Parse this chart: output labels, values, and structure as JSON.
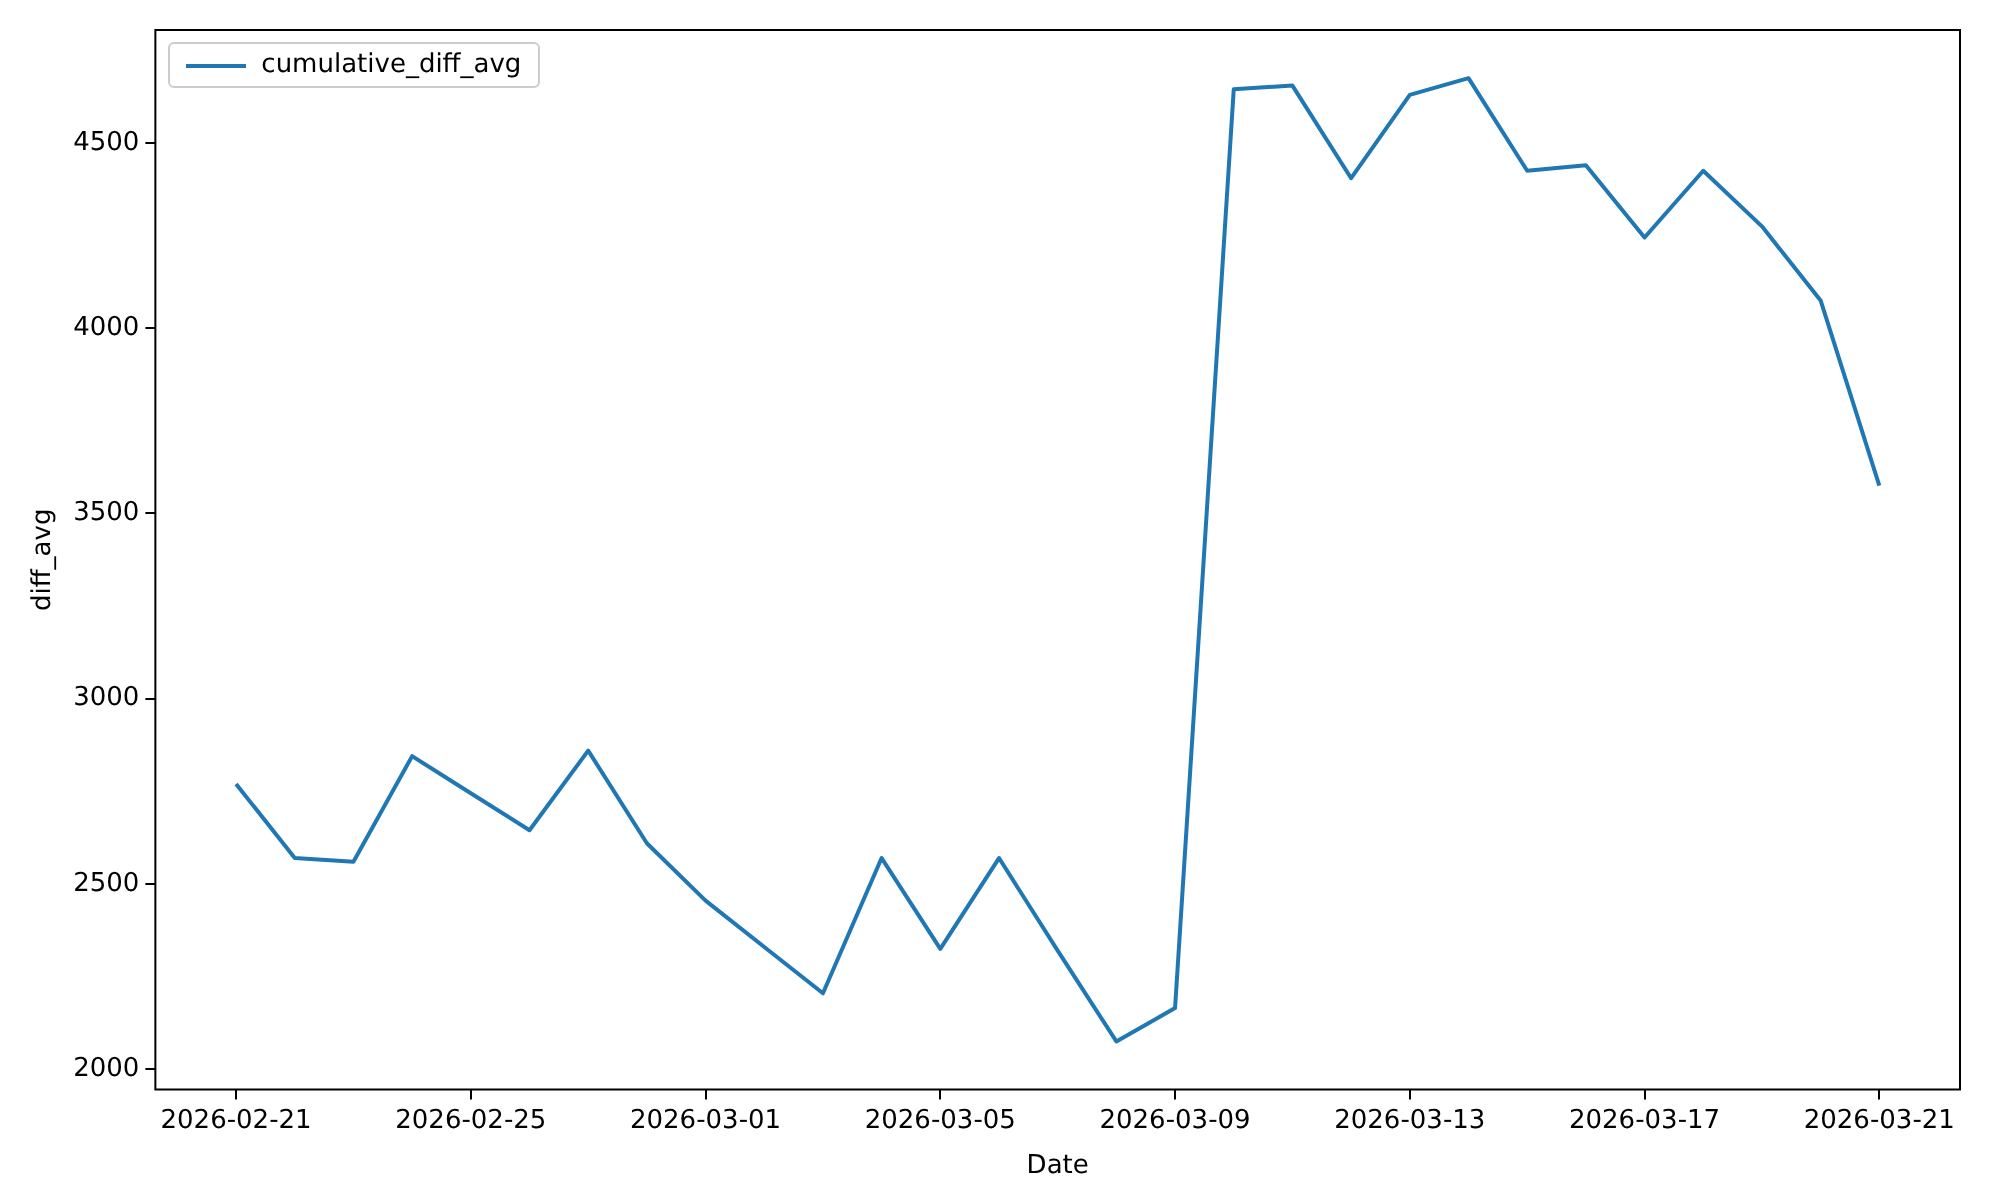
{
  "chart_data": {
    "type": "line",
    "xlabel": "Date",
    "ylabel": "diff_avg",
    "x": [
      "2026-02-21",
      "2026-02-22",
      "2026-02-23",
      "2026-02-24",
      "2026-02-25",
      "2026-02-26",
      "2026-02-27",
      "2026-02-28",
      "2026-03-01",
      "2026-03-02",
      "2026-03-03",
      "2026-03-04",
      "2026-03-05",
      "2026-03-06",
      "2026-03-07",
      "2026-03-08",
      "2026-03-09",
      "2026-03-10",
      "2026-03-11",
      "2026-03-12",
      "2026-03-13",
      "2026-03-14",
      "2026-03-15",
      "2026-03-16",
      "2026-03-17",
      "2026-03-18",
      "2026-03-19",
      "2026-03-20",
      "2026-03-21"
    ],
    "series": [
      {
        "name": "cumulative_diff_avg",
        "color": "#1f77b4",
        "values": [
          2770,
          2570,
          2560,
          2845,
          2745,
          2645,
          2860,
          2610,
          2455,
          2330,
          2205,
          2570,
          2325,
          2570,
          2320,
          2075,
          2165,
          4645,
          4655,
          4405,
          4630,
          4675,
          4425,
          4440,
          4245,
          4425,
          4275,
          4075,
          3575
        ]
      }
    ],
    "xlim": [
      "2026-02-19T15:00",
      "2026-03-22T09:00"
    ],
    "xticks": [
      "2026-02-21",
      "2026-02-25",
      "2026-03-01",
      "2026-03-05",
      "2026-03-09",
      "2026-03-13",
      "2026-03-17",
      "2026-03-21"
    ],
    "ylim": [
      1945,
      4805
    ],
    "yticks": [
      2000,
      2500,
      3000,
      3500,
      4000,
      4500
    ],
    "legend": "top left",
    "marker": "none",
    "line_style": "solid",
    "grid": false
  }
}
